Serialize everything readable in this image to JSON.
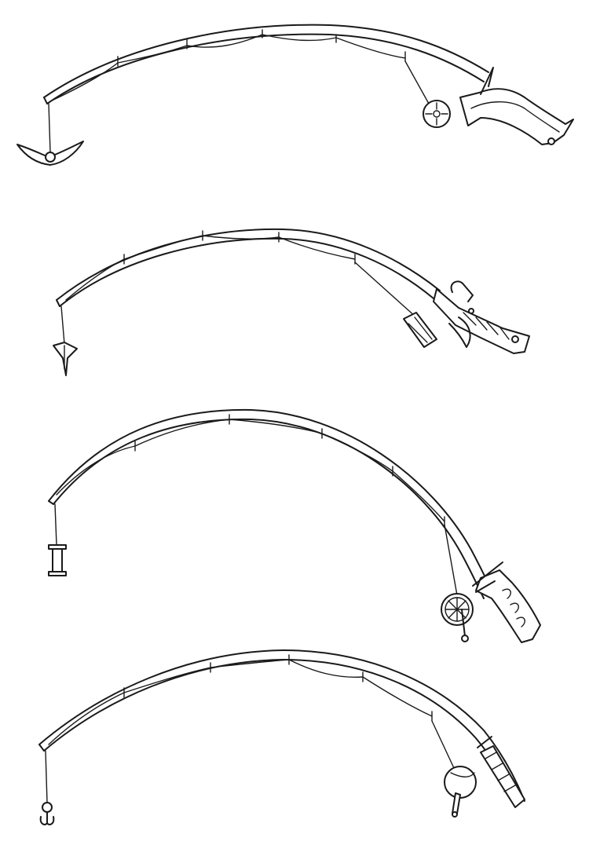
{
  "canvas": {
    "background": "#ffffff",
    "ink": "#1a1a1a"
  },
  "rods": [
    {
      "id": "rod-1",
      "tip_attachment": "crescent-blade-icon",
      "reel": "target-reel-icon",
      "handle": "pistol-grip-icon"
    },
    {
      "id": "rod-2",
      "tip_attachment": "arrowhead-lure-icon",
      "reel": "spool-reel-icon",
      "handle": "wrapped-grip-icon"
    },
    {
      "id": "rod-3",
      "tip_attachment": "bobbin-weight-icon",
      "reel": "spoked-reel-icon",
      "handle": "finger-grip-icon"
    },
    {
      "id": "rod-4",
      "tip_attachment": "treble-hook-icon",
      "reel": "round-reel-icon",
      "handle": "wrapped-grip-icon"
    }
  ]
}
